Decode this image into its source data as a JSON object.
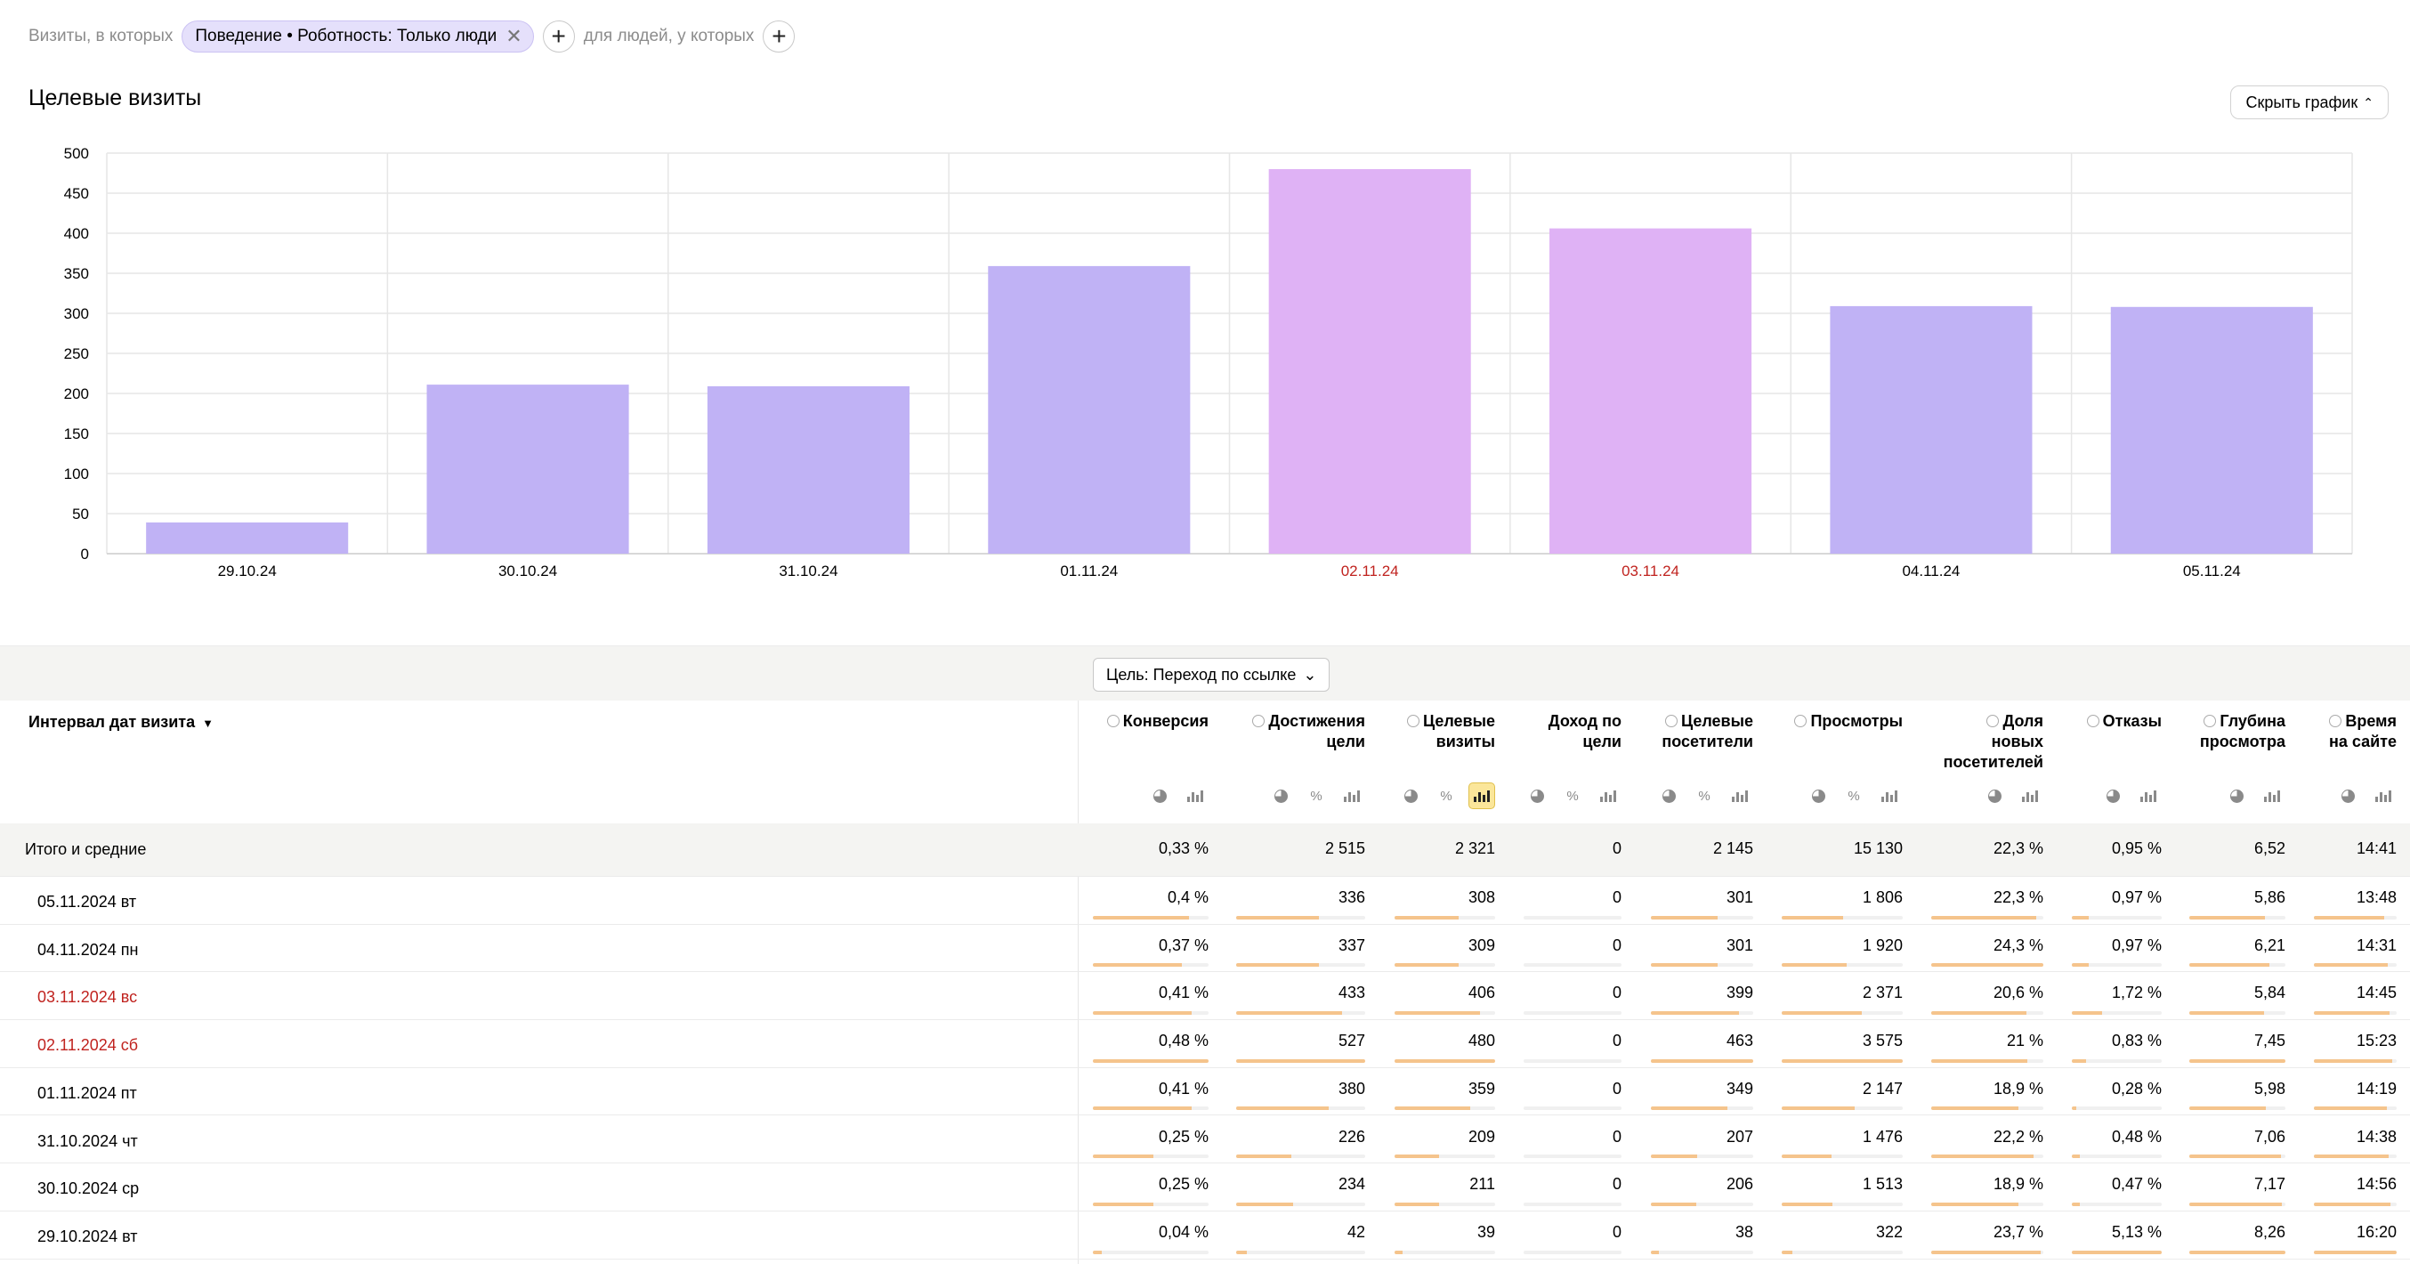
{
  "filters": {
    "visits_label": "Визиты, в которых",
    "chip_label": "Поведение • Роботность: Только люди",
    "people_label": "для людей, у которых",
    "plus_glyph": "+",
    "close_glyph": "✕"
  },
  "chart_header": {
    "title": "Целевые визиты",
    "hide_button": "Скрыть график",
    "hide_chevron": "⌃"
  },
  "chart_data": {
    "type": "bar",
    "categories": [
      "29.10.24",
      "30.10.24",
      "31.10.24",
      "01.11.24",
      "02.11.24",
      "03.11.24",
      "04.11.24",
      "05.11.24"
    ],
    "values": [
      39,
      211,
      209,
      359,
      480,
      406,
      309,
      308
    ],
    "weekend": [
      false,
      false,
      false,
      false,
      true,
      true,
      false,
      false
    ],
    "ylim": [
      0,
      500
    ],
    "yticks": [
      0,
      50,
      100,
      150,
      200,
      250,
      300,
      350,
      400,
      450,
      500
    ],
    "grid": true,
    "colors": {
      "weekday": "#c0b2f5",
      "weekend": "#dfb2f5",
      "weekend_label": "#c0231f",
      "grid": "#e6e6e6"
    }
  },
  "goal_select": {
    "label": "Цель: Переход по ссылке",
    "chevron": "⌄"
  },
  "table": {
    "dimension_header": "Интервал дат визита",
    "sort_arrow": "▼",
    "columns": [
      {
        "key": "conv",
        "lines": [
          "Конверсия"
        ],
        "help": true,
        "icons": [
          "pie",
          "bars"
        ]
      },
      {
        "key": "reach",
        "lines": [
          "Достижения",
          "цели"
        ],
        "help": true,
        "icons": [
          "pie",
          "percent",
          "bars"
        ]
      },
      {
        "key": "tvisits",
        "lines": [
          "Целевые",
          "визиты"
        ],
        "help": true,
        "icons": [
          "pie",
          "percent",
          "bars-active"
        ]
      },
      {
        "key": "income",
        "lines": [
          "Доход по",
          "цели"
        ],
        "help": false,
        "icons": [
          "pie",
          "percent",
          "bars"
        ]
      },
      {
        "key": "tvisitors",
        "lines": [
          "Целевые",
          "посетители"
        ],
        "help": true,
        "icons": [
          "pie",
          "percent",
          "bars"
        ]
      },
      {
        "key": "views",
        "lines": [
          "Просмотры"
        ],
        "help": true,
        "icons": [
          "pie",
          "percent",
          "bars"
        ]
      },
      {
        "key": "newshare",
        "lines": [
          "Доля",
          "новых",
          "посетителей"
        ],
        "help": true,
        "icons": [
          "pie",
          "bars"
        ]
      },
      {
        "key": "bounce",
        "lines": [
          "Отказы"
        ],
        "help": true,
        "icons": [
          "pie",
          "bars"
        ]
      },
      {
        "key": "depth",
        "lines": [
          "Глубина",
          "просмотра"
        ],
        "help": true,
        "icons": [
          "pie",
          "bars"
        ]
      },
      {
        "key": "time",
        "lines": [
          "Время",
          "на сайте"
        ],
        "help": true,
        "icons": [
          "pie",
          "bars"
        ]
      }
    ],
    "total": {
      "label": "Итого и средние",
      "values": [
        "0,33 %",
        "2 515",
        "2 321",
        "0",
        "2 145",
        "15 130",
        "22,3 %",
        "0,95 %",
        "6,52",
        "14:41"
      ]
    },
    "rows": [
      {
        "label": "05.11.2024 вт",
        "weekend": false,
        "values": [
          "0,4 %",
          "336",
          "308",
          "0",
          "301",
          "1 806",
          "22,3 %",
          "0,97 %",
          "5,86",
          "13:48"
        ],
        "fill": [
          0.83,
          0.64,
          0.64,
          0,
          0.65,
          0.51,
          0.94,
          0.19,
          0.79,
          0.85
        ]
      },
      {
        "label": "04.11.2024 пн",
        "weekend": false,
        "values": [
          "0,37 %",
          "337",
          "309",
          "0",
          "301",
          "1 920",
          "24,3 %",
          "0,97 %",
          "6,21",
          "14:31"
        ],
        "fill": [
          0.77,
          0.64,
          0.64,
          0,
          0.65,
          0.54,
          1.0,
          0.19,
          0.83,
          0.89
        ]
      },
      {
        "label": "03.11.2024 вс",
        "weekend": true,
        "values": [
          "0,41 %",
          "433",
          "406",
          "0",
          "399",
          "2 371",
          "20,6 %",
          "1,72 %",
          "5,84",
          "14:45"
        ],
        "fill": [
          0.85,
          0.82,
          0.85,
          0,
          0.86,
          0.66,
          0.85,
          0.34,
          0.78,
          0.91
        ]
      },
      {
        "label": "02.11.2024 сб",
        "weekend": true,
        "values": [
          "0,48 %",
          "527",
          "480",
          "0",
          "463",
          "3 575",
          "21 %",
          "0,83 %",
          "7,45",
          "15:23"
        ],
        "fill": [
          1.0,
          1.0,
          1.0,
          0,
          1.0,
          1.0,
          0.86,
          0.16,
          1.0,
          0.95
        ]
      },
      {
        "label": "01.11.2024 пт",
        "weekend": false,
        "values": [
          "0,41 %",
          "380",
          "359",
          "0",
          "349",
          "2 147",
          "18,9 %",
          "0,28 %",
          "5,98",
          "14:19"
        ],
        "fill": [
          0.85,
          0.72,
          0.75,
          0,
          0.75,
          0.6,
          0.78,
          0.05,
          0.8,
          0.88
        ]
      },
      {
        "label": "31.10.2024 чт",
        "weekend": false,
        "values": [
          "0,25 %",
          "226",
          "209",
          "0",
          "207",
          "1 476",
          "22,2 %",
          "0,48 %",
          "7,06",
          "14:38"
        ],
        "fill": [
          0.52,
          0.43,
          0.44,
          0,
          0.45,
          0.41,
          0.91,
          0.09,
          0.95,
          0.9
        ]
      },
      {
        "label": "30.10.2024 ср",
        "weekend": false,
        "values": [
          "0,25 %",
          "234",
          "211",
          "0",
          "206",
          "1 513",
          "18,9 %",
          "0,47 %",
          "7,17",
          "14:56"
        ],
        "fill": [
          0.52,
          0.44,
          0.44,
          0,
          0.44,
          0.42,
          0.78,
          0.09,
          0.96,
          0.92
        ]
      },
      {
        "label": "29.10.2024 вт",
        "weekend": false,
        "values": [
          "0,04 %",
          "42",
          "39",
          "0",
          "38",
          "322",
          "23,7 %",
          "5,13 %",
          "8,26",
          "16:20"
        ],
        "fill": [
          0.08,
          0.08,
          0.08,
          0,
          0.08,
          0.09,
          0.98,
          1.0,
          1.0,
          1.0
        ]
      }
    ]
  }
}
